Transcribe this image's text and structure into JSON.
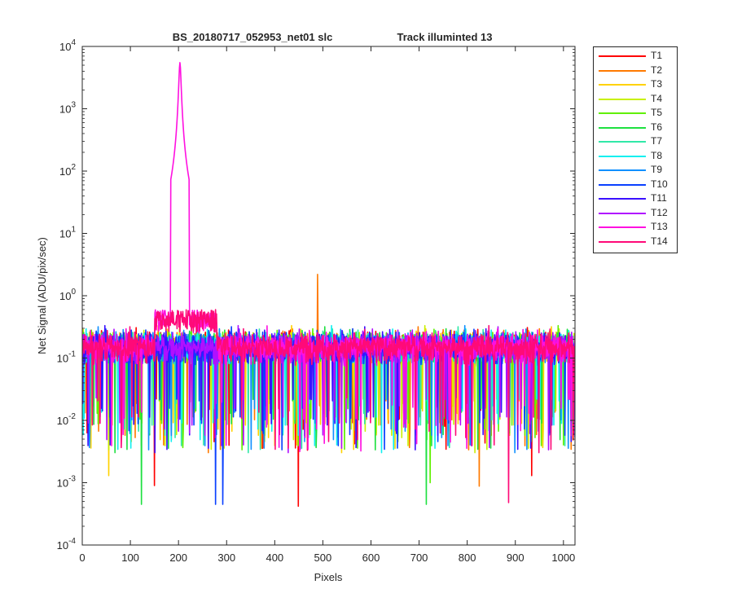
{
  "chart_data": {
    "type": "line",
    "title_left": "BS_20180717_052953_net01   slc",
    "title_right": "Track illuminted 13",
    "xlabel": "Pixels",
    "ylabel": "Net Signal (ADU/pix/sec)",
    "xlim": [
      0,
      1024
    ],
    "ylim": [
      0.0001,
      10000
    ],
    "yscale": "log",
    "x_ticks": [
      "0",
      "100",
      "200",
      "300",
      "400",
      "500",
      "600",
      "700",
      "800",
      "900",
      "1000"
    ],
    "y_ticks": [
      {
        "base": "10",
        "exp": "-4"
      },
      {
        "base": "10",
        "exp": "-3"
      },
      {
        "base": "10",
        "exp": "-2"
      },
      {
        "base": "10",
        "exp": "-1"
      },
      {
        "base": "10",
        "exp": "0"
      },
      {
        "base": "10",
        "exp": "1"
      },
      {
        "base": "10",
        "exp": "2"
      },
      {
        "base": "10",
        "exp": "3"
      },
      {
        "base": "10",
        "exp": "4"
      }
    ],
    "legend_position": "outside-right-top",
    "series": [
      {
        "name": "T1",
        "color": "#ff0000"
      },
      {
        "name": "T2",
        "color": "#ff7a00"
      },
      {
        "name": "T3",
        "color": "#ffd200"
      },
      {
        "name": "T4",
        "color": "#c8f000"
      },
      {
        "name": "T5",
        "color": "#60f000"
      },
      {
        "name": "T6",
        "color": "#1ee040"
      },
      {
        "name": "T7",
        "color": "#30e8a8"
      },
      {
        "name": "T8",
        "color": "#10f0f0"
      },
      {
        "name": "T9",
        "color": "#1090ff"
      },
      {
        "name": "T10",
        "color": "#0a40ff"
      },
      {
        "name": "T11",
        "color": "#3a10ff"
      },
      {
        "name": "T12",
        "color": "#b010ff"
      },
      {
        "name": "T13",
        "color": "#ff10e0"
      },
      {
        "name": "T14",
        "color": "#ff0a78"
      }
    ],
    "features": {
      "T13_peak": {
        "x": 203,
        "y": 5500,
        "base": 0.6,
        "halfwidth": 20
      },
      "T2_spike": {
        "x": 489,
        "y": 2.2
      },
      "noise_median": 0.15,
      "dips": [
        {
          "series": "T3",
          "x": 55,
          "y": 0.0013
        },
        {
          "series": "T6",
          "x": 123,
          "y": 0.00045
        },
        {
          "series": "T10",
          "x": 277,
          "y": 0.00045
        },
        {
          "series": "T10",
          "x": 292,
          "y": 0.00045
        },
        {
          "series": "T1",
          "x": 449,
          "y": 0.00042
        },
        {
          "series": "T6",
          "x": 715,
          "y": 0.00045
        },
        {
          "series": "T2",
          "x": 825,
          "y": 0.00088
        },
        {
          "series": "T14",
          "x": 886,
          "y": 0.00048
        },
        {
          "series": "T1",
          "x": 150,
          "y": 0.0009
        },
        {
          "series": "T5",
          "x": 723,
          "y": 0.001
        },
        {
          "series": "T1",
          "x": 934,
          "y": 0.0013
        }
      ]
    }
  }
}
